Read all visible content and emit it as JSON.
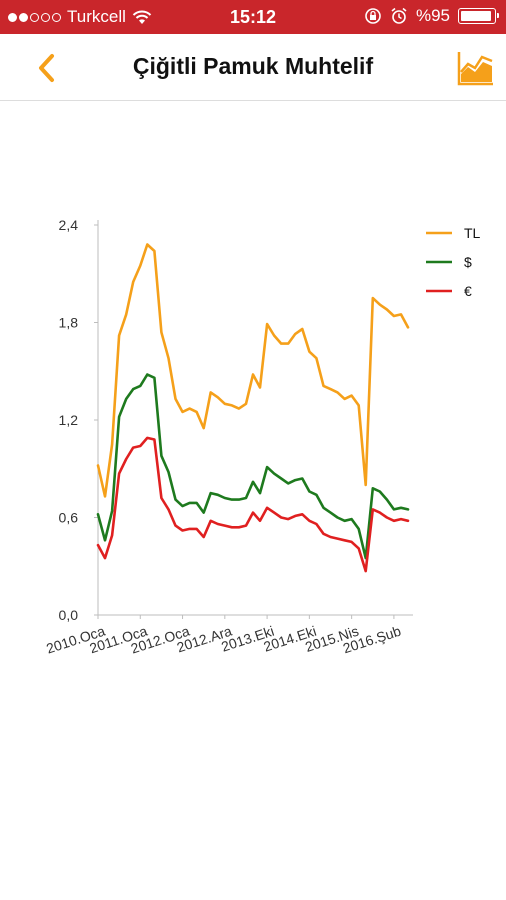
{
  "status_bar": {
    "carrier": "Turkcell",
    "time": "15:12",
    "battery": "%95",
    "battery_level": 0.95
  },
  "nav": {
    "title": "Çiğitli Pamuk Muhtelif",
    "back_icon": "chevron-left-icon",
    "chart_icon": "area-chart-icon",
    "accent": "#f5a01a"
  },
  "chart_data": {
    "type": "line",
    "title": "",
    "xlabel": "",
    "ylabel": "",
    "ylim": [
      0,
      2.4
    ],
    "yticks": [
      "0,0",
      "0,6",
      "1,2",
      "1,8",
      "2,4"
    ],
    "ytick_values": [
      0,
      0.6,
      1.2,
      1.8,
      2.4
    ],
    "x_tick_labels": [
      "2010.Oca",
      "2011.Oca",
      "2012.Oca",
      "2012.Ara",
      "2013.Eki",
      "2014.Eki",
      "2015.Nis",
      "2016.Şub"
    ],
    "x_tick_indices": [
      0,
      6,
      12,
      18,
      24,
      30,
      36,
      42
    ],
    "grid": false,
    "legend_position": "top-right",
    "series": [
      {
        "name": "TL",
        "color": "#f5a01a",
        "values": [
          0.92,
          0.73,
          1.05,
          1.72,
          1.85,
          2.05,
          2.15,
          2.28,
          2.24,
          1.74,
          1.58,
          1.33,
          1.25,
          1.27,
          1.25,
          1.15,
          1.37,
          1.34,
          1.3,
          1.29,
          1.27,
          1.3,
          1.48,
          1.4,
          1.79,
          1.72,
          1.67,
          1.67,
          1.73,
          1.76,
          1.62,
          1.58,
          1.41,
          1.39,
          1.37,
          1.33,
          1.35,
          1.29,
          0.8,
          1.95,
          1.91,
          1.88,
          1.84,
          1.85,
          1.77
        ]
      },
      {
        "name": "$",
        "color": "#1e7a1e",
        "values": [
          0.62,
          0.46,
          0.64,
          1.22,
          1.33,
          1.39,
          1.41,
          1.48,
          1.46,
          0.98,
          0.88,
          0.71,
          0.67,
          0.69,
          0.69,
          0.63,
          0.75,
          0.74,
          0.72,
          0.71,
          0.71,
          0.72,
          0.82,
          0.75,
          0.91,
          0.87,
          0.84,
          0.81,
          0.83,
          0.84,
          0.76,
          0.74,
          0.66,
          0.63,
          0.6,
          0.58,
          0.59,
          0.53,
          0.35,
          0.78,
          0.76,
          0.71,
          0.65,
          0.66,
          0.65
        ]
      },
      {
        "name": "€",
        "color": "#e02020",
        "values": [
          0.43,
          0.35,
          0.49,
          0.87,
          0.96,
          1.03,
          1.04,
          1.09,
          1.08,
          0.72,
          0.65,
          0.55,
          0.52,
          0.53,
          0.53,
          0.48,
          0.58,
          0.56,
          0.55,
          0.54,
          0.54,
          0.55,
          0.63,
          0.58,
          0.66,
          0.63,
          0.6,
          0.59,
          0.61,
          0.62,
          0.58,
          0.56,
          0.5,
          0.48,
          0.47,
          0.46,
          0.45,
          0.41,
          0.27,
          0.65,
          0.63,
          0.6,
          0.58,
          0.59,
          0.58
        ]
      }
    ]
  }
}
